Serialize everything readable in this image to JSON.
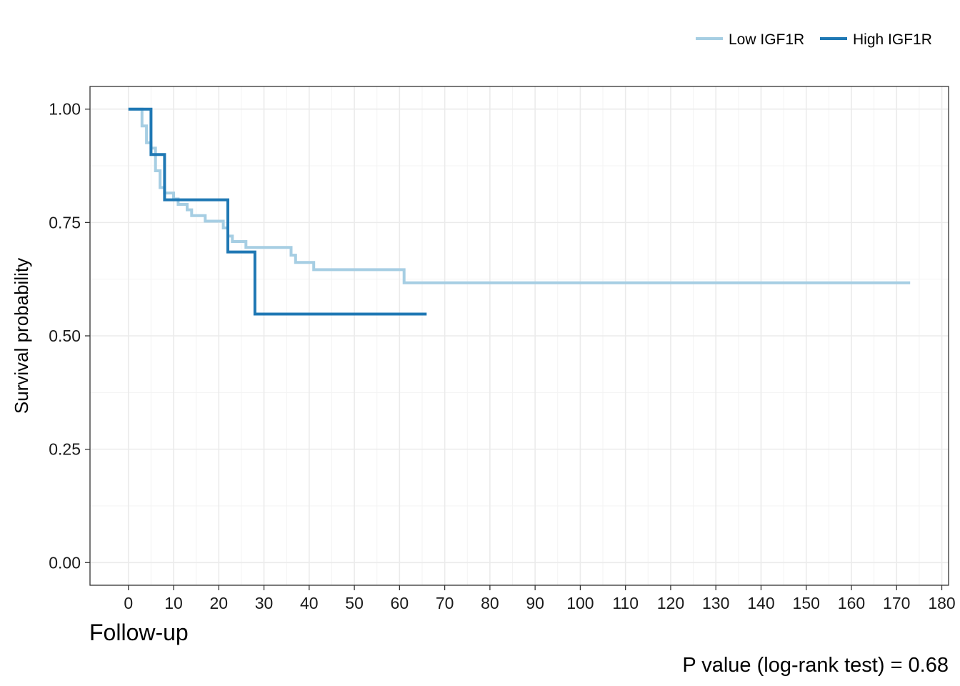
{
  "chart_data": {
    "type": "line",
    "subtype": "step",
    "xlabel": "Follow-up",
    "ylabel": "Survival probability",
    "caption": "P value (log-rank test) = 0.68",
    "xlim": [
      -8.5,
      181.5
    ],
    "ylim": [
      -0.05,
      1.05
    ],
    "x_ticks": [
      0,
      10,
      20,
      30,
      40,
      50,
      60,
      70,
      80,
      90,
      100,
      110,
      120,
      130,
      140,
      150,
      160,
      170,
      180
    ],
    "y_ticks": [
      0,
      0.25,
      0.5,
      0.75,
      1.0
    ],
    "y_tick_labels": [
      "0.00",
      "0.25",
      "0.50",
      "0.75",
      "1.00"
    ],
    "grid": true,
    "legend_position": "top-right",
    "series": [
      {
        "name": "Low IGF1R",
        "color": "#a6cee3",
        "x": [
          0,
          3,
          4,
          5,
          6,
          7,
          8,
          10,
          11,
          13,
          14,
          17,
          21,
          22,
          23,
          26,
          36,
          37,
          41,
          61,
          173
        ],
        "y": [
          1.0,
          0.963,
          0.926,
          0.914,
          0.864,
          0.827,
          0.815,
          0.802,
          0.79,
          0.778,
          0.765,
          0.753,
          0.738,
          0.72,
          0.708,
          0.695,
          0.678,
          0.662,
          0.646,
          0.617,
          0.617
        ]
      },
      {
        "name": "High IGF1R",
        "color": "#1f78b4",
        "x": [
          0,
          5,
          8,
          22,
          28,
          66
        ],
        "y": [
          1.0,
          0.9,
          0.8,
          0.685,
          0.548,
          0.548
        ]
      }
    ]
  }
}
